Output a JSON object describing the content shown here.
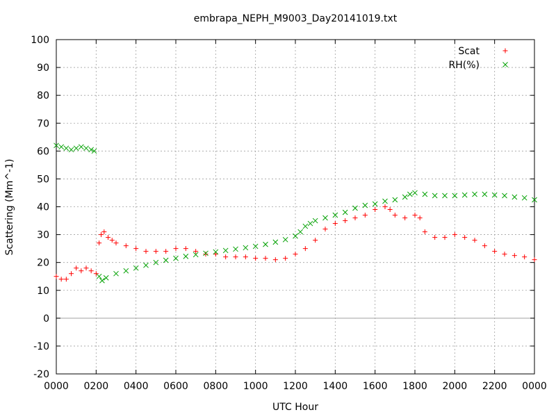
{
  "chart_data": {
    "type": "scatter",
    "title": "embrapa_NEPH_M9003_Day20141019.txt",
    "xlabel": "UTC Hour",
    "ylabel": "Scattering (Mm^-1)",
    "xlim": [
      0,
      24
    ],
    "ylim": [
      -20,
      100
    ],
    "x_ticks": [
      0,
      2,
      4,
      6,
      8,
      10,
      12,
      14,
      16,
      18,
      20,
      22,
      24
    ],
    "x_tick_labels": [
      "0000",
      "0200",
      "0400",
      "0600",
      "0800",
      "1000",
      "1200",
      "1400",
      "1600",
      "1800",
      "2000",
      "2200",
      "0000"
    ],
    "y_ticks": [
      -20,
      -10,
      0,
      10,
      20,
      30,
      40,
      50,
      60,
      70,
      80,
      90,
      100
    ],
    "grid": true,
    "legend_position": "top-right",
    "series": [
      {
        "name": "Scat",
        "color": "#ff0000",
        "marker": "plus",
        "x": [
          0.0,
          0.25,
          0.5,
          0.75,
          1.0,
          1.25,
          1.5,
          1.75,
          2.0,
          2.15,
          2.25,
          2.4,
          2.6,
          2.8,
          3.0,
          3.5,
          4.0,
          4.5,
          5.0,
          5.5,
          6.0,
          6.5,
          7.0,
          7.5,
          8.0,
          8.5,
          9.0,
          9.5,
          10.0,
          10.5,
          11.0,
          11.5,
          12.0,
          12.5,
          13.0,
          13.5,
          14.0,
          14.5,
          15.0,
          15.5,
          16.0,
          16.5,
          16.75,
          17.0,
          17.5,
          18.0,
          18.25,
          18.5,
          19.0,
          19.5,
          20.0,
          20.5,
          21.0,
          21.5,
          22.0,
          22.5,
          23.0,
          23.5,
          24.0
        ],
        "y": [
          15,
          14,
          14,
          16,
          18,
          17,
          18,
          17,
          16,
          27,
          30,
          31,
          29,
          28,
          27,
          26,
          25,
          24,
          24,
          24,
          25,
          25,
          24,
          23,
          23,
          22,
          22,
          22,
          21.5,
          21.5,
          21,
          21.5,
          23,
          25,
          28,
          32,
          34,
          35,
          36,
          37,
          39,
          40,
          39,
          37,
          36,
          37,
          36,
          31,
          29,
          29,
          30,
          29,
          28,
          26,
          24,
          23,
          22.5,
          22,
          21
        ]
      },
      {
        "name": "RH(%)",
        "color": "#00a000",
        "marker": "cross",
        "x": [
          0.0,
          0.25,
          0.5,
          0.75,
          1.0,
          1.25,
          1.5,
          1.75,
          1.9,
          2.15,
          2.3,
          2.5,
          3.0,
          3.5,
          4.0,
          4.5,
          5.0,
          5.5,
          6.0,
          6.5,
          7.0,
          7.5,
          8.0,
          8.5,
          9.0,
          9.5,
          10.0,
          10.5,
          11.0,
          11.5,
          12.0,
          12.25,
          12.5,
          12.75,
          13.0,
          13.5,
          14.0,
          14.5,
          15.0,
          15.5,
          16.0,
          16.5,
          17.0,
          17.5,
          17.75,
          18.0,
          18.5,
          19.0,
          19.5,
          20.0,
          20.5,
          21.0,
          21.5,
          22.0,
          22.5,
          23.0,
          23.5,
          24.0
        ],
        "y": [
          62,
          61.5,
          61,
          60.5,
          61,
          61.5,
          61,
          60.5,
          60,
          15,
          13.5,
          14.5,
          16,
          17,
          18,
          19,
          20,
          20.8,
          21.5,
          22.2,
          22.8,
          23.3,
          23.8,
          24.3,
          24.8,
          25.3,
          25.8,
          26.5,
          27.3,
          28.2,
          29.5,
          31,
          33,
          34,
          35,
          36,
          37,
          38,
          39.5,
          40.5,
          41,
          42,
          42.5,
          43.5,
          44.5,
          45,
          44.5,
          44,
          44,
          44,
          44.2,
          44.5,
          44.5,
          44.2,
          44,
          43.5,
          43.2,
          42.5
        ]
      }
    ]
  }
}
